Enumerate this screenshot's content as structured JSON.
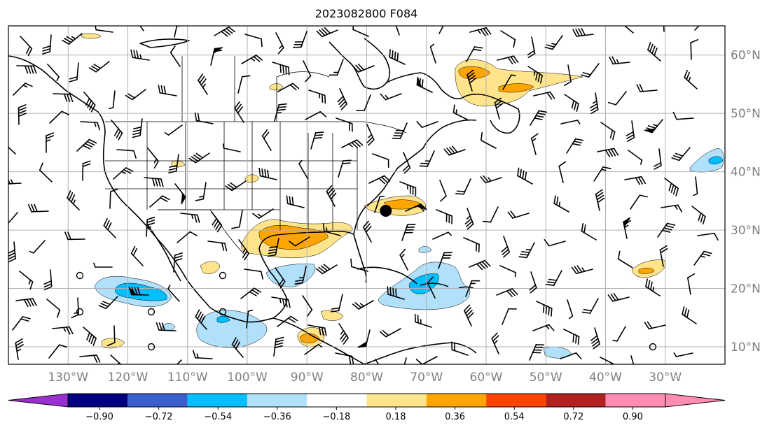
{
  "title": "2023082800 F084",
  "map": {
    "lon_range": [
      -140,
      -20
    ],
    "lat_range": [
      7,
      65
    ],
    "lon_labels": [
      "130°W",
      "120°W",
      "110°W",
      "100°W",
      "90°W",
      "80°W",
      "70°W",
      "60°W",
      "50°W",
      "40°W",
      "30°W"
    ],
    "lat_labels": [
      "60°N",
      "50°N",
      "40°N",
      "30°N",
      "20°N",
      "10°N"
    ],
    "marker": {
      "name": "storm-center-marker",
      "lon": -76.8,
      "lat": 33.3
    }
  },
  "colorbar": {
    "tick_labels": [
      "−0.90",
      "−0.72",
      "−0.54",
      "−0.36",
      "−0.18",
      "0.18",
      "0.36",
      "0.54",
      "0.72",
      "0.90"
    ],
    "colors": {
      "under": "#9b30d0",
      "bins": [
        "#000080",
        "#3a5fcd",
        "#00bfff",
        "#b0e0fa",
        "#ffffff",
        "#ffe48c",
        "#ffa500",
        "#ff4500",
        "#b22222",
        "#ff8cb4"
      ],
      "over": "#ff8cb4"
    }
  },
  "shading_colors": {
    "light_positive": "#ffe48c",
    "positive": "#ffa500",
    "light_negative": "#b0e0fa",
    "negative": "#00bfff"
  }
}
